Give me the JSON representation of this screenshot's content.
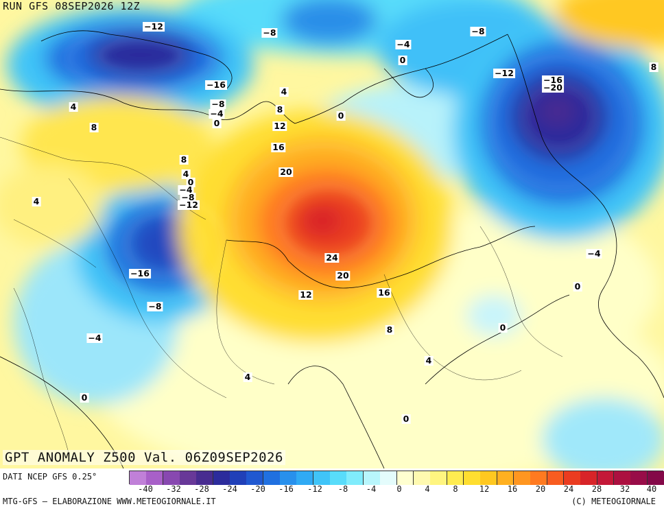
{
  "header": {
    "run": "RUN GFS 08SEP2026 12Z"
  },
  "title": {
    "text": "GPT ANOMALY Z500 Val. 06Z09SEP2026"
  },
  "footer": {
    "source": "DATI NCEP GFS 0.25°",
    "credit": "MTG-GFS — ELABORAZIONE WWW.METEOGIORNALE.IT",
    "copyright": "(C) METEOGIORNALE"
  },
  "colorscale": {
    "colors": [
      "#c080d8",
      "#a860c8",
      "#8848b0",
      "#683898",
      "#482c90",
      "#2c2c9c",
      "#2040b8",
      "#2058d0",
      "#2070e0",
      "#2890ec",
      "#30aaf4",
      "#40c4f8",
      "#58dcfa",
      "#80ecfc",
      "#b8f6fc",
      "#e4fcfc",
      "#ffffd0",
      "#fffab0",
      "#fff580",
      "#ffec50",
      "#ffde30",
      "#ffc820",
      "#ffb020",
      "#ff9620",
      "#ff7a20",
      "#f85c20",
      "#ea3c20",
      "#d82428",
      "#c41838",
      "#ac1040",
      "#980c48",
      "#840848"
    ],
    "tick_labels": [
      "-40",
      "-32",
      "-28",
      "-24",
      "-20",
      "-16",
      "-12",
      "-8",
      "-4",
      "0",
      "4",
      "8",
      "12",
      "16",
      "20",
      "24",
      "28",
      "32",
      "40"
    ]
  },
  "map": {
    "contour_labels": [
      {
        "text": "-12"
      },
      {
        "text": "-8"
      },
      {
        "text": "-4"
      },
      {
        "text": "0"
      },
      {
        "text": "-8"
      },
      {
        "text": "8"
      },
      {
        "text": "-16"
      },
      {
        "text": "-8"
      },
      {
        "text": "-4"
      },
      {
        "text": "0"
      },
      {
        "text": "4"
      },
      {
        "text": "8"
      },
      {
        "text": "12"
      },
      {
        "text": "16"
      },
      {
        "text": "20"
      },
      {
        "text": "0"
      },
      {
        "text": "4"
      },
      {
        "text": "8"
      },
      {
        "text": "-12"
      },
      {
        "text": "-16"
      },
      {
        "text": "-20"
      },
      {
        "text": "8"
      },
      {
        "text": "4"
      },
      {
        "text": "0"
      },
      {
        "text": "-4"
      },
      {
        "text": "-8"
      },
      {
        "text": "-12"
      },
      {
        "text": "4"
      },
      {
        "text": "-16"
      },
      {
        "text": "-8"
      },
      {
        "text": "-4"
      },
      {
        "text": "0"
      },
      {
        "text": "24"
      },
      {
        "text": "20"
      },
      {
        "text": "12"
      },
      {
        "text": "16"
      },
      {
        "text": "8"
      },
      {
        "text": "4"
      },
      {
        "text": "4"
      },
      {
        "text": "0"
      },
      {
        "text": "0"
      },
      {
        "text": "-4"
      },
      {
        "text": "0"
      }
    ]
  }
}
